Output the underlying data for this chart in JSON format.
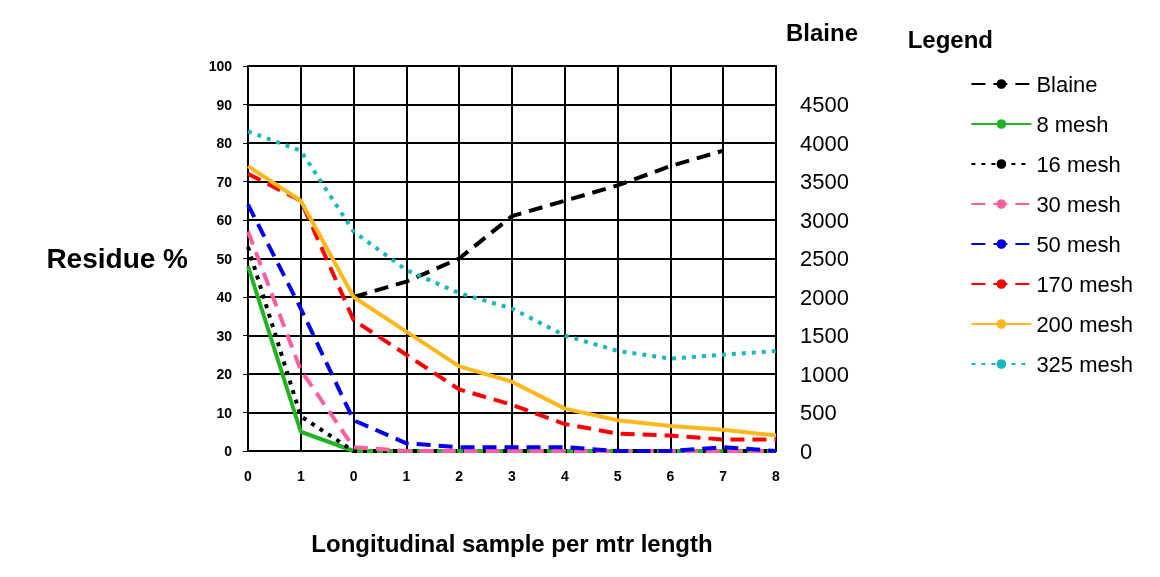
{
  "chart_data": {
    "type": "line",
    "xlabel": "Longitudinal sample per mtr length",
    "ylabel": "Residue %",
    "y2label": "Blaine",
    "legend_title": "Legend",
    "categories": [
      "0",
      "1",
      "0",
      "1",
      "2",
      "3",
      "4",
      "5",
      "6",
      "7",
      "8"
    ],
    "series": [
      {
        "name": "Blaine",
        "color": "#000000",
        "line_style": "dashed",
        "axis": "y2",
        "values": [
          null,
          null,
          2000,
          2200,
          2500,
          3050,
          3250,
          3450,
          3700,
          3900,
          null
        ]
      },
      {
        "name": "8 mesh",
        "color": "#22b322",
        "line_style": "solid",
        "values": [
          48,
          5,
          0,
          0,
          0,
          0,
          0,
          0,
          0,
          0,
          0
        ]
      },
      {
        "name": "16 mesh",
        "color": "#000000",
        "line_style": "dotted",
        "values": [
          53,
          9,
          0,
          0,
          0,
          0,
          0,
          0,
          0,
          0,
          0
        ]
      },
      {
        "name": "30 mesh",
        "color": "#ff5fa0",
        "line_style": "dashed",
        "values": [
          57,
          21,
          1,
          0,
          0,
          0,
          0,
          0,
          0,
          0,
          0
        ]
      },
      {
        "name": "50 mesh",
        "color": "#0000ee",
        "line_style": "dashed",
        "values": [
          64,
          37,
          8,
          2,
          1,
          1,
          1,
          0,
          0,
          1,
          0
        ]
      },
      {
        "name": "170 mesh",
        "color": "#ff0000",
        "line_style": "dashed",
        "values": [
          72,
          65,
          34,
          25,
          16,
          12,
          7,
          4.5,
          4,
          3,
          3
        ]
      },
      {
        "name": "200 mesh",
        "color": "#ffb81c",
        "line_style": "solid",
        "values": [
          74,
          65,
          40,
          31,
          22,
          18,
          11,
          8,
          6.5,
          5.5,
          4
        ]
      },
      {
        "name": "325 mesh",
        "color": "#17b8bd",
        "line_style": "dotted",
        "values": [
          83,
          78,
          57,
          47,
          41,
          37,
          30,
          26,
          24,
          25,
          26
        ]
      }
    ],
    "ylim": [
      0,
      100
    ],
    "yticks": [
      0,
      10,
      20,
      30,
      40,
      50,
      60,
      70,
      80,
      90,
      100
    ],
    "y2lim": [
      0,
      5000
    ],
    "y2ticks": [
      0,
      500,
      1000,
      1500,
      2000,
      2500,
      3000,
      3500,
      4000,
      4500
    ],
    "grid": true,
    "legend": "right",
    "marker": "none"
  }
}
